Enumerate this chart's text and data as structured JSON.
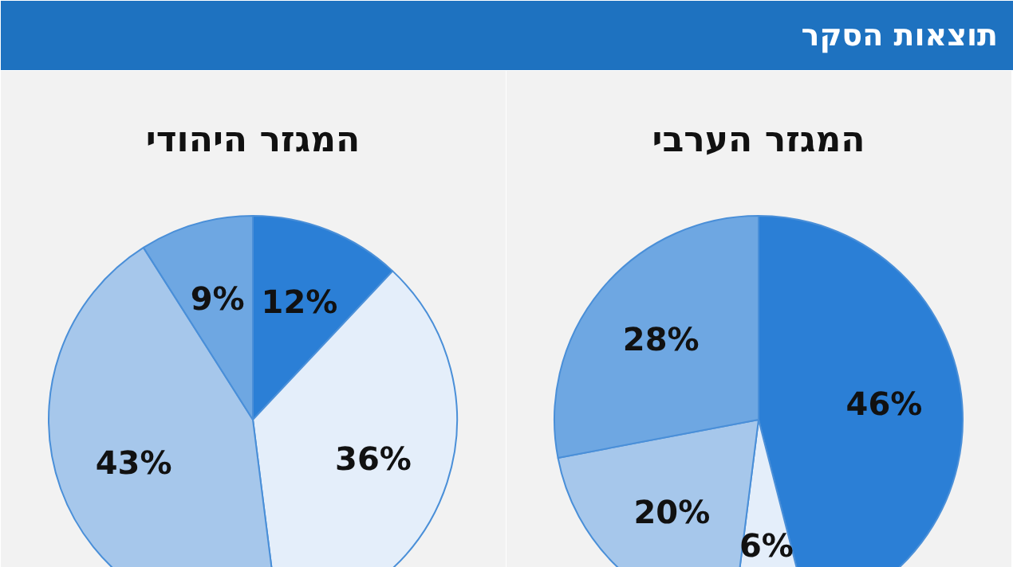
{
  "chart_data": [
    {
      "type": "other",
      "title": "תוצאות הסקר"
    },
    {
      "type": "pie",
      "title": "המגזר הערבי",
      "categories": [
        null,
        null,
        null,
        null
      ],
      "values": [
        46,
        6,
        20,
        28
      ],
      "colors": [
        "#2b7fd6",
        "#e4eefa",
        "#a6c7eb",
        "#6ea7e2"
      ],
      "value_labels": [
        "46%",
        "6%",
        "20%",
        "28%"
      ]
    },
    {
      "type": "pie",
      "title": "המגזר היהודי",
      "categories": [
        null,
        null,
        null,
        null
      ],
      "values": [
        12,
        36,
        43,
        9
      ],
      "colors": [
        "#2b7fd6",
        "#e4eefa",
        "#a6c7eb",
        "#6ea7e2"
      ],
      "value_labels": [
        "12%",
        "36%",
        "43%",
        "9%"
      ]
    }
  ]
}
